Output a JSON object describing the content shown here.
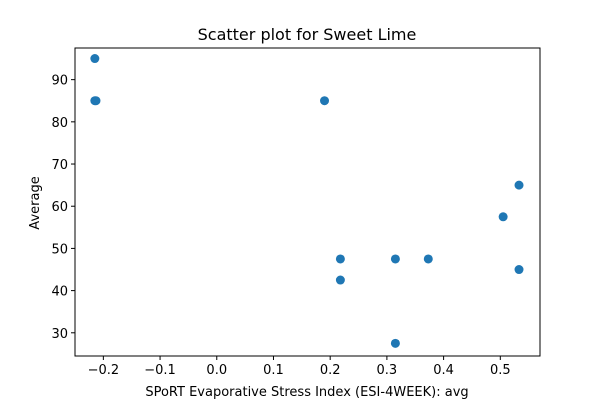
{
  "chart_data": {
    "type": "scatter",
    "title": "Scatter plot for Sweet Lime",
    "xlabel": "SPoRT Evaporative Stress Index (ESI-4WEEK): avg",
    "ylabel": "Average",
    "xlim": [
      -0.25,
      0.57
    ],
    "ylim": [
      24.5,
      97.5
    ],
    "xticks": [
      -0.2,
      -0.1,
      0.0,
      0.1,
      0.2,
      0.3,
      0.4,
      0.5
    ],
    "xtick_labels": [
      "−0.2",
      "−0.1",
      "0.0",
      "0.1",
      "0.2",
      "0.3",
      "0.4",
      "0.5"
    ],
    "yticks": [
      30,
      40,
      50,
      60,
      70,
      80,
      90
    ],
    "ytick_labels": [
      "30",
      "40",
      "50",
      "60",
      "70",
      "80",
      "90"
    ],
    "grid": false,
    "marker_color": "#1f77b4",
    "points": [
      {
        "x": -0.215,
        "y": 95
      },
      {
        "x": -0.215,
        "y": 85
      },
      {
        "x": -0.213,
        "y": 85
      },
      {
        "x": 0.19,
        "y": 85
      },
      {
        "x": 0.218,
        "y": 47.5
      },
      {
        "x": 0.218,
        "y": 42.5
      },
      {
        "x": 0.315,
        "y": 47.5
      },
      {
        "x": 0.315,
        "y": 27.5
      },
      {
        "x": 0.373,
        "y": 47.5
      },
      {
        "x": 0.505,
        "y": 57.5
      },
      {
        "x": 0.533,
        "y": 65
      },
      {
        "x": 0.533,
        "y": 45
      }
    ]
  }
}
